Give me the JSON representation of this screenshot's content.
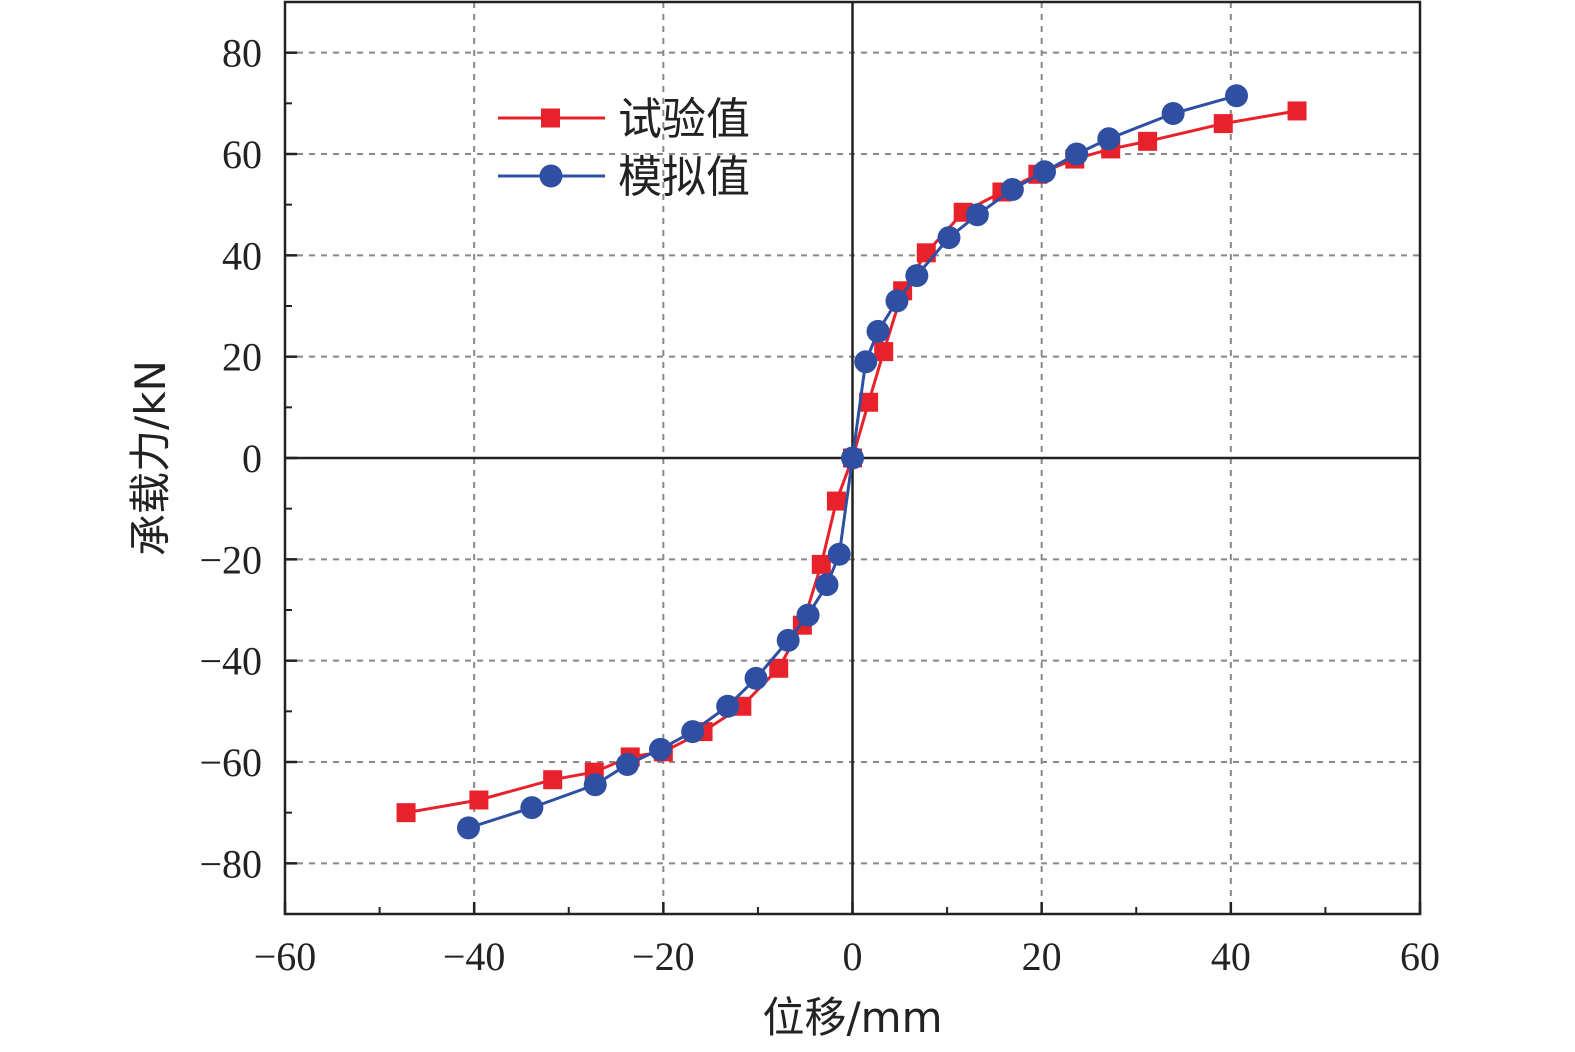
{
  "chart_data": {
    "type": "line",
    "xlabel": "位移/mm",
    "ylabel": "承载力/kN",
    "xlim": [
      -60,
      60
    ],
    "ylim": [
      -90,
      90
    ],
    "x_ticks": [
      -60,
      -40,
      -20,
      0,
      20,
      40,
      60
    ],
    "y_ticks": [
      -80,
      -60,
      -40,
      -20,
      0,
      20,
      40,
      60,
      80
    ],
    "x_tick_labels": [
      "−60",
      "−40",
      "−20",
      "0",
      "20",
      "40",
      "60"
    ],
    "y_tick_labels": [
      "−80",
      "−60",
      "−40",
      "−20",
      "0",
      "20",
      "40",
      "60",
      "80"
    ],
    "grid": true,
    "legend_position": "top-left",
    "series": [
      {
        "name": "试验值",
        "color": "#e8222b",
        "marker": "square",
        "x": [
          -47.2,
          -39.5,
          -31.7,
          -27.3,
          -23.5,
          -20.0,
          -15.8,
          -11.7,
          -7.8,
          -5.3,
          -3.3,
          -1.7,
          0,
          1.7,
          3.3,
          5.3,
          7.8,
          11.7,
          15.8,
          19.6,
          23.5,
          27.3,
          31.2,
          39.2,
          47.0
        ],
        "y": [
          -70,
          -67.5,
          -63.5,
          -62,
          -59,
          -58,
          -54,
          -49,
          -41.5,
          -33,
          -21,
          -8.5,
          0,
          11,
          21,
          33,
          40.5,
          48.5,
          52.5,
          56,
          59,
          61,
          62.5,
          66,
          68.5
        ]
      },
      {
        "name": "模拟值",
        "color": "#2f4fa2",
        "marker": "circle",
        "x": [
          -40.6,
          -33.9,
          -27.2,
          -23.8,
          -20.3,
          -16.9,
          -13.2,
          -10.2,
          -6.8,
          -4.7,
          -2.7,
          -1.4,
          0,
          1.4,
          2.7,
          4.7,
          6.8,
          10.2,
          13.2,
          16.9,
          20.3,
          23.7,
          27.1,
          33.9,
          40.6
        ],
        "y": [
          -73,
          -69,
          -64.5,
          -60.5,
          -57.5,
          -54,
          -49,
          -43.5,
          -36,
          -31,
          -25,
          -19,
          0,
          19,
          25,
          31,
          36,
          43.5,
          48,
          53,
          56.5,
          60,
          63,
          68,
          71.5
        ]
      }
    ]
  }
}
